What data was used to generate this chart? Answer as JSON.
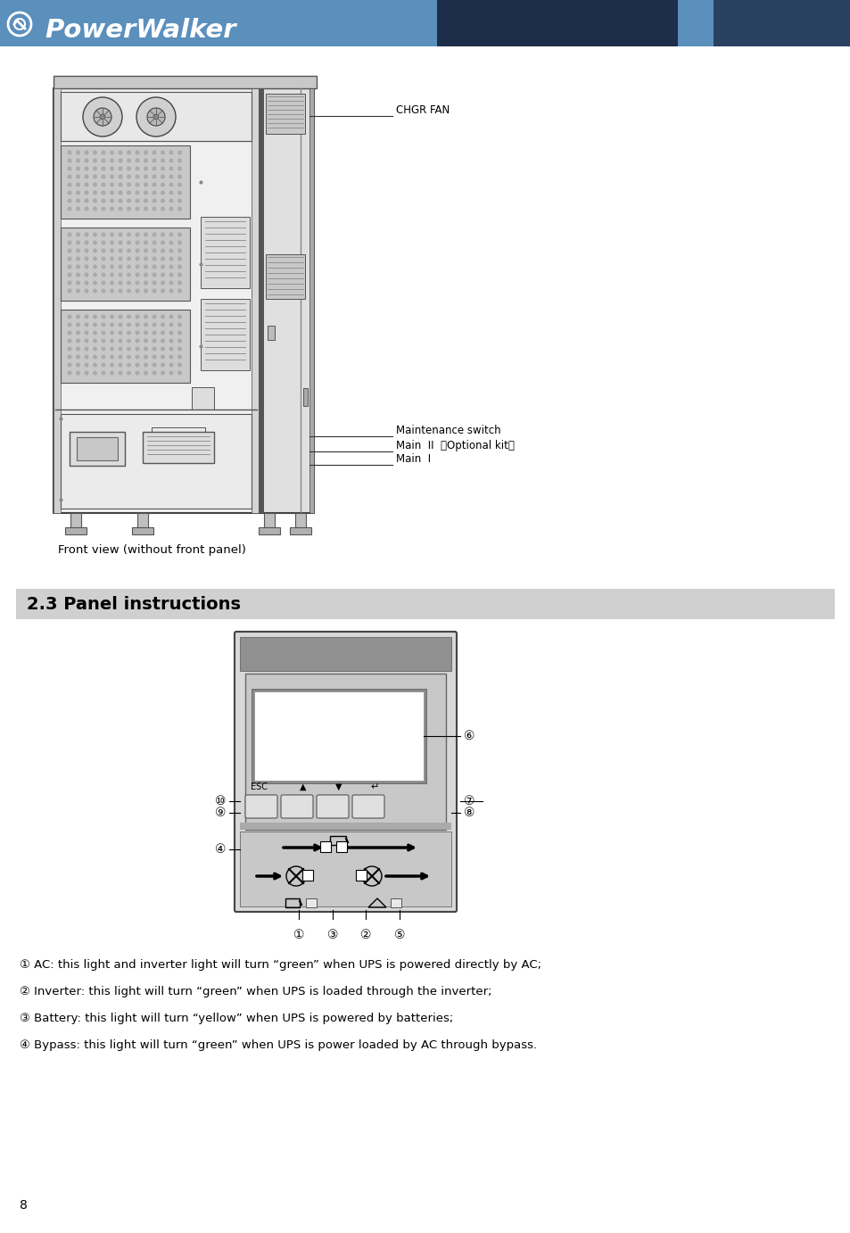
{
  "title": "PowerWalker",
  "section_title": "2.3 Panel instructions",
  "caption": "Front view (without front panel)",
  "page_number": "8",
  "header_bg1": "#5b8fbc",
  "header_bg2": "#1c2e4a",
  "header_bg3": "#2a4060",
  "body_bg_color": "#ffffff",
  "section_bg_color": "#d0d0d0",
  "bullet_texts": [
    "① AC: this light and inverter light will turn “green” when UPS is powered directly by AC;",
    "② Inverter: this light will turn “green” when UPS is loaded through the inverter;",
    "③ Battery: this light will turn “yellow” when UPS is powered by batteries;",
    "④ Bypass: this light will turn “green” when UPS is power loaded by AC through bypass."
  ]
}
